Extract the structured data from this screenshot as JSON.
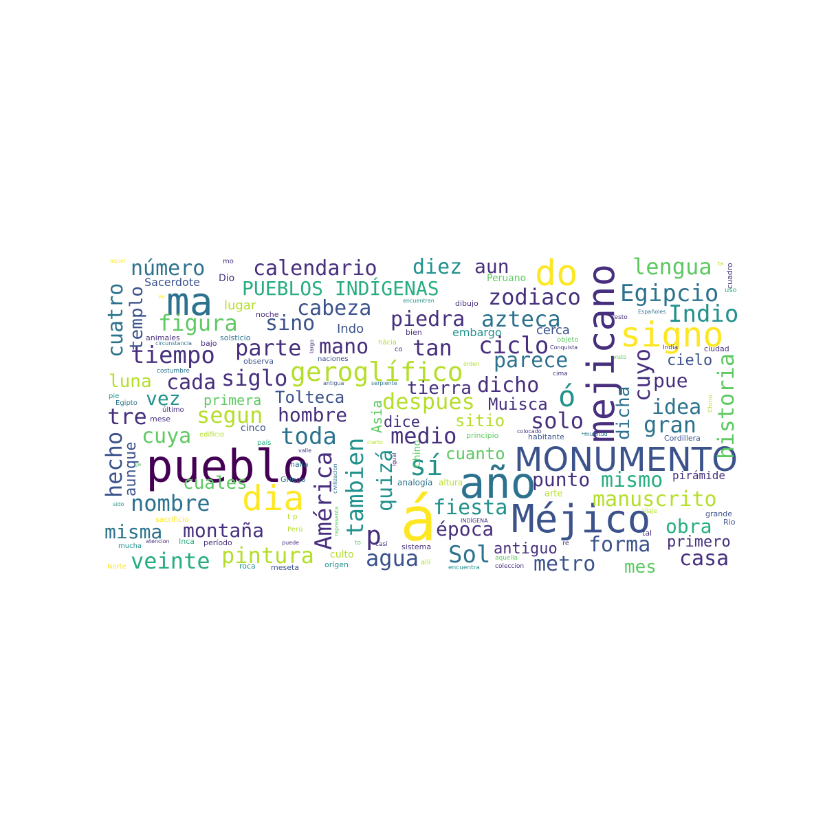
{
  "palette": {
    "purple": "#440154",
    "indigo": "#472f7d",
    "blue": "#3b528b",
    "teal": "#21918c",
    "green": "#27ad81",
    "lime": "#5ec962",
    "yellow": "#fde725",
    "yellowgreen": "#b5de2b",
    "darkteal": "#2c728e"
  },
  "words": [
    "pueblo",
    "MONUMENTO",
    "año",
    "á",
    "Méjico",
    "mejicano",
    "ma",
    "signo",
    "do",
    "dia",
    "PUEBLOS INDÍGENAS",
    "geroglífico",
    "calendario",
    "número",
    "diez",
    "aun",
    "lengua",
    "cabeza",
    "zodiaco",
    "Egipcio",
    "Indio",
    "piedra",
    "azteca",
    "figura",
    "sino",
    "tiempo",
    "parte",
    "mano",
    "tan",
    "ciclo",
    "parece",
    "cuyo",
    "pue",
    "cielo",
    "historia",
    "cuatro",
    "templo",
    "luna",
    "cada",
    "siglo",
    "dicho",
    "Tolteca",
    "primera",
    "vez",
    "despues",
    "Muisca",
    "ó",
    "idea",
    "segun",
    "hombre",
    "tierra",
    "sitio",
    "solo",
    "gran",
    "dicha",
    "tre",
    "hecho",
    "aunque",
    "cuya",
    "toda",
    "dice",
    "medio",
    "Asia",
    "América",
    "tambien",
    "quizá",
    "sí",
    "cuanto",
    "mismo",
    "punto",
    "pirámide",
    "manuscrito",
    "cuales",
    "nombre",
    "fiesta",
    "época",
    "obra",
    "misma",
    "montaña",
    "p",
    "veinte",
    "pintura",
    "agua",
    "Sol",
    "antiguo",
    "metro",
    "forma",
    "primero",
    "casa",
    "mes",
    "Sacerdote",
    "Dio",
    "lugar",
    "Indo",
    "Peruano",
    "dibujo",
    "encuentran",
    "embargo",
    "cerca",
    "objeto",
    "Conquista",
    "visto",
    "India",
    "ciudad",
    "cima",
    "multitud",
    "Cordillera",
    "habitante",
    "principio",
    "colocado",
    "altura",
    "analogía",
    "arte",
    "Viaje",
    "grande",
    "Rio",
    "tal",
    "re",
    "aquella",
    "coleccion",
    "sistema",
    "casi",
    "allí",
    "encuentra",
    "culto",
    "orígen",
    "roca",
    "meseta",
    "Norte",
    "mucha",
    "atencion",
    "Inca",
    "período",
    "Perú",
    "sacrificio",
    "sido",
    "Ja",
    "halla",
    "Griego",
    "valle",
    "país",
    "edificio",
    "cinco",
    "mese",
    "último",
    "Egipto",
    "pie",
    "costumbre",
    "observa",
    "animales",
    "bajo",
    "solsticio",
    "noche",
    "circunstancia",
    "aquel",
    "ve",
    "mo",
    "ta",
    "cuadro",
    "uso",
    "resto",
    "Españoles",
    "bien",
    "co",
    "hácia",
    "naciones",
    "órden",
    "serpiente",
    "antigua",
    "cierto",
    "igual",
    "to",
    "puede",
    "t p",
    "representa",
    "civilizacion",
    "largo",
    "Chino",
    "INDÍGENA",
    "t",
    "rd",
    "Dió"
  ]
}
